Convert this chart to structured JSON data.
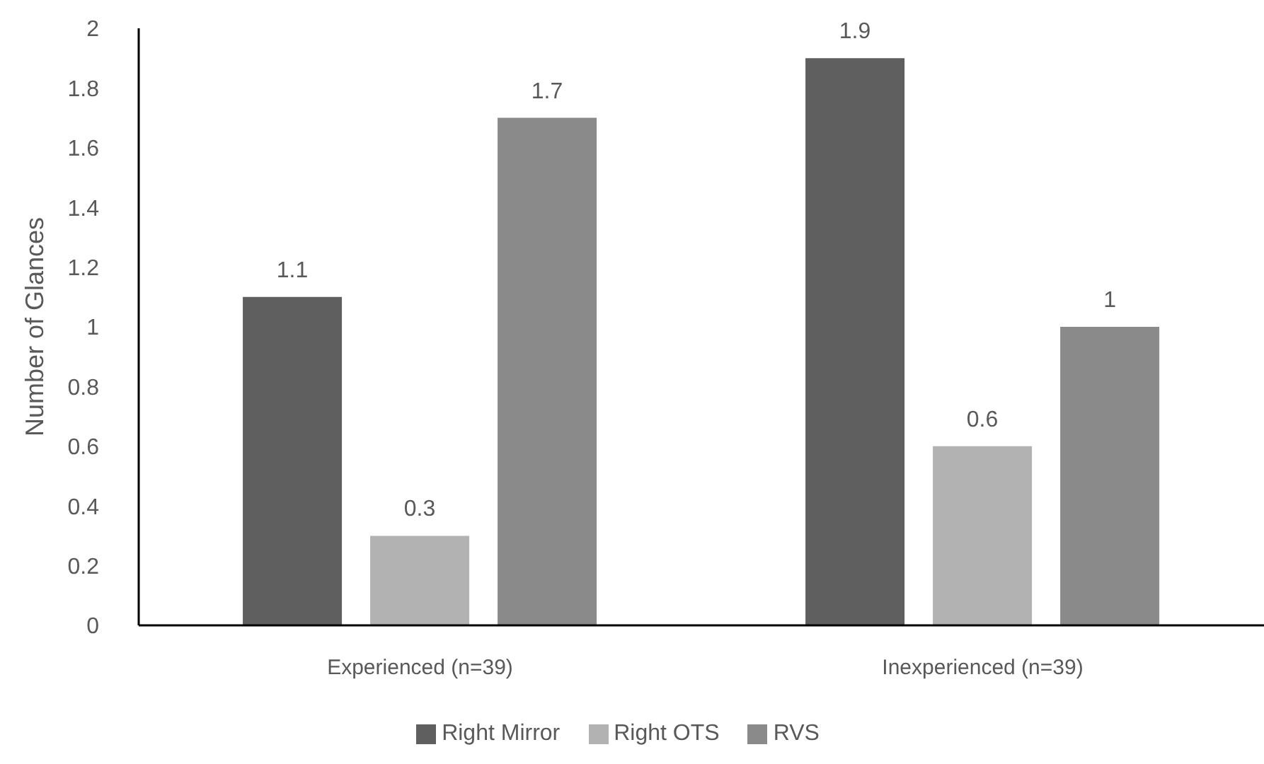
{
  "chart_data": {
    "type": "bar",
    "ylabel": "Number of Glances",
    "categories": [
      "Experienced (n=39)",
      "Inexperienced (n=39)"
    ],
    "series": [
      {
        "name": "Right Mirror",
        "color": "#5f5f5f",
        "values": [
          1.1,
          1.9
        ]
      },
      {
        "name": "Right OTS",
        "color": "#b2b2b2",
        "values": [
          0.3,
          0.6
        ]
      },
      {
        "name": "RVS",
        "color": "#8a8a8a",
        "values": [
          1.7,
          1
        ]
      }
    ],
    "ylim": [
      0,
      2
    ],
    "yticks": [
      0,
      0.2,
      0.4,
      0.6,
      0.8,
      1,
      1.2,
      1.4,
      1.6,
      1.8,
      2
    ],
    "data_labels": true,
    "legend": "bottom"
  }
}
